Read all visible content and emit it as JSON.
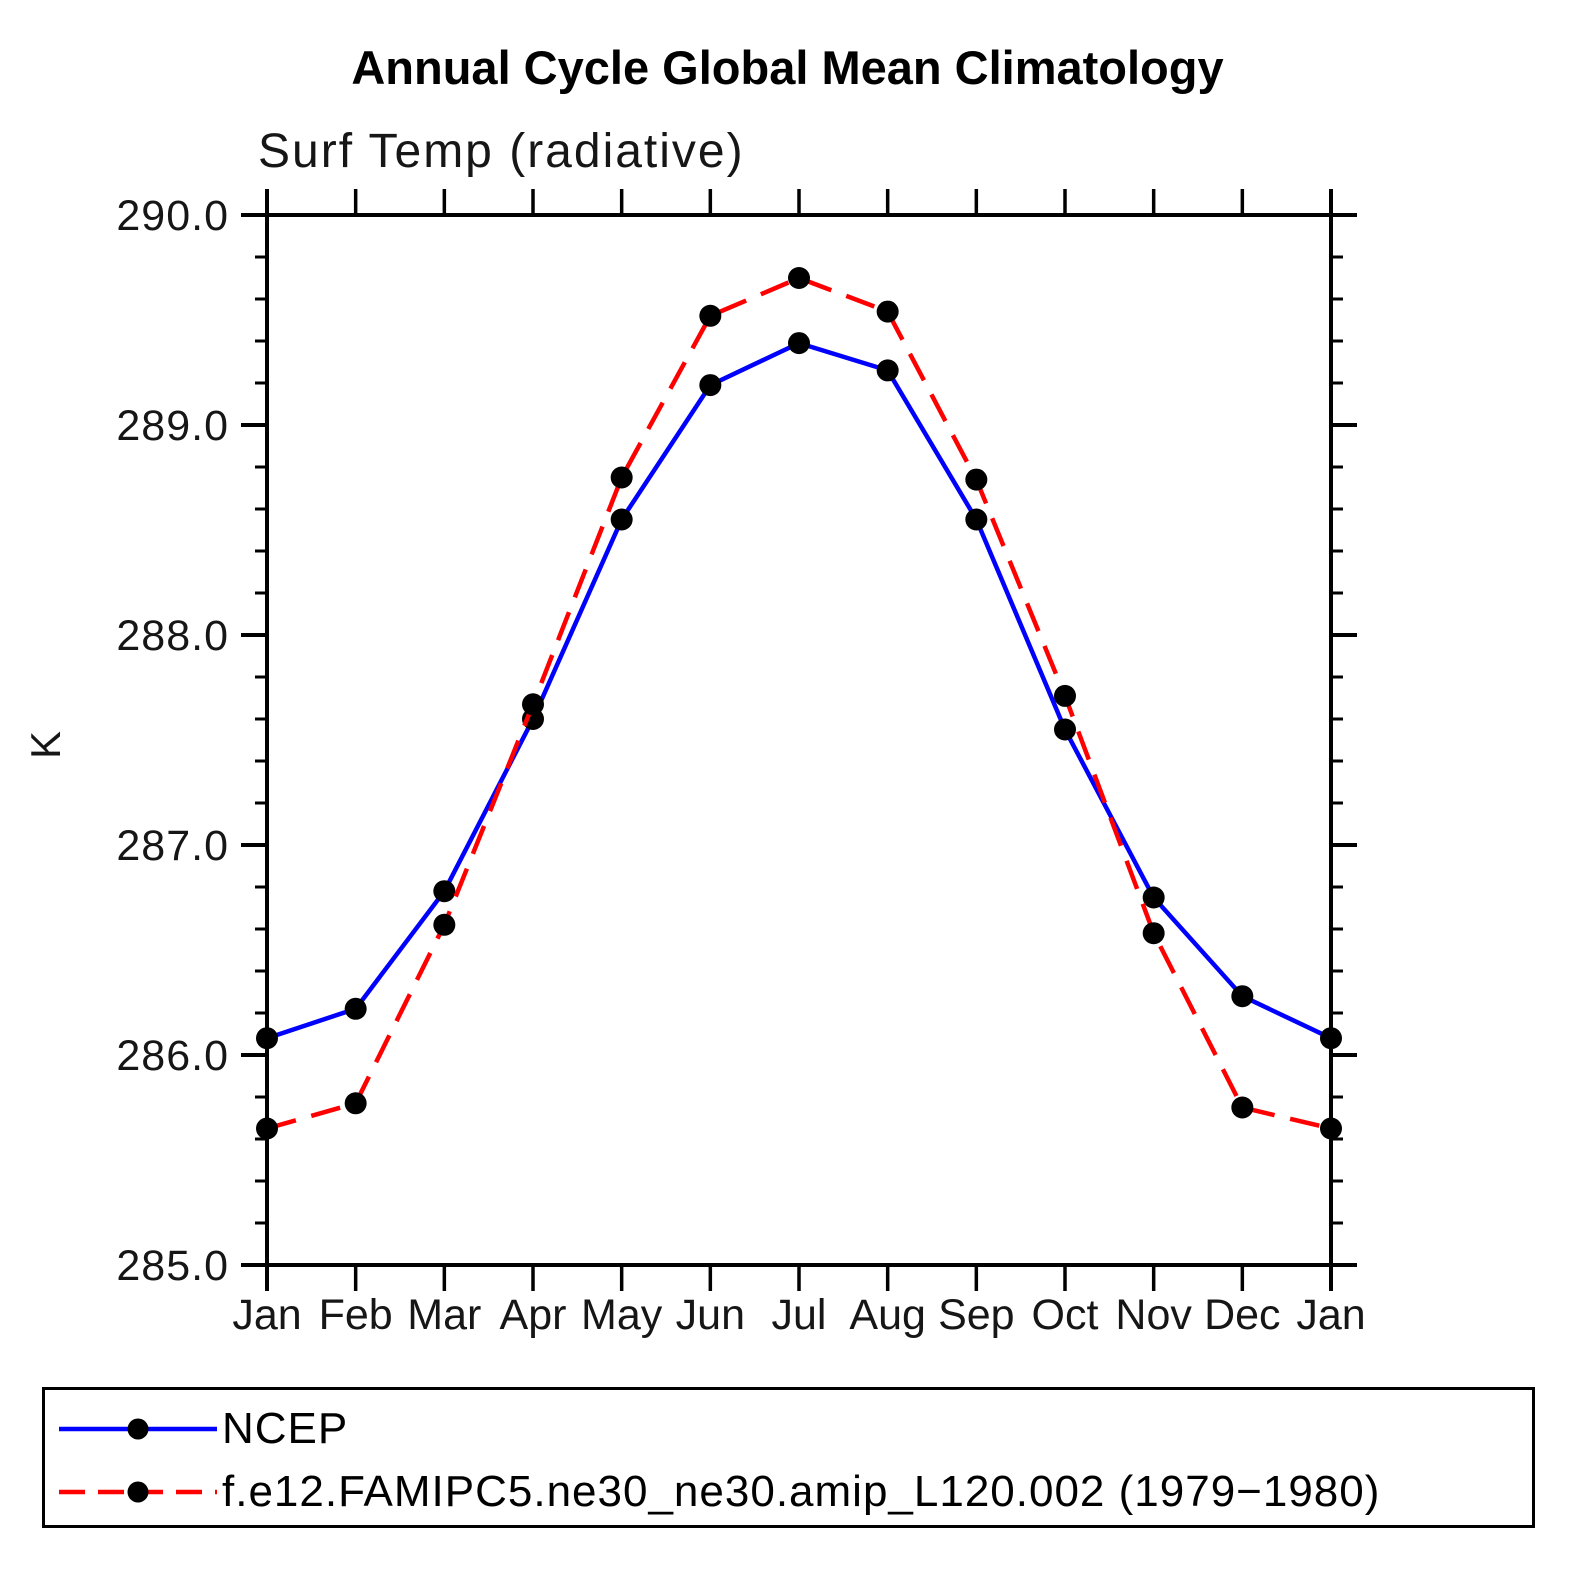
{
  "title": "Annual Cycle Global Mean Climatology",
  "subtitle": "Surf Temp (radiative)",
  "y_axis_label": "K",
  "chart_data": {
    "type": "line",
    "title": "Annual Cycle Global Mean Climatology",
    "subtitle": "Surf Temp (radiative)",
    "xlabel": "",
    "ylabel": "K",
    "categories": [
      "Jan",
      "Feb",
      "Mar",
      "Apr",
      "May",
      "Jun",
      "Jul",
      "Aug",
      "Sep",
      "Oct",
      "Nov",
      "Dec",
      "Jan"
    ],
    "ylim": [
      285.0,
      290.0
    ],
    "ytick_major_step": 1.0,
    "ytick_minor_step": 0.2,
    "ytick_major_labels": [
      "285.0",
      "286.0",
      "287.0",
      "288.0",
      "289.0",
      "290.0"
    ],
    "grid": false,
    "axis_box": true,
    "tick_direction": "out",
    "legend_position": "bottom-left-box",
    "series": [
      {
        "name": "NCEP",
        "line_color": "#0000ff",
        "line_style": "solid",
        "marker": "filled-circle",
        "marker_color": "#000000",
        "values": [
          286.08,
          286.22,
          286.78,
          287.6,
          288.55,
          289.19,
          289.39,
          289.26,
          288.55,
          287.55,
          286.75,
          286.28,
          286.08
        ]
      },
      {
        "name": "f.e12.FAMIPC5.ne30_ne30.amip_L120.002 (1979−1980)",
        "line_color": "#ff0000",
        "line_style": "dashed",
        "marker": "filled-circle",
        "marker_color": "#000000",
        "values": [
          285.65,
          285.77,
          286.62,
          287.67,
          288.75,
          289.52,
          289.7,
          289.54,
          288.74,
          287.71,
          286.58,
          285.75,
          285.65
        ]
      }
    ]
  },
  "legend": {
    "entries": [
      {
        "label": "NCEP",
        "line_color": "#0000ff",
        "line_style": "solid",
        "marker_color": "#000000"
      },
      {
        "label": "f.e12.FAMIPC5.ne30_ne30.amip_L120.002 (1979−1980)",
        "line_color": "#ff0000",
        "line_style": "dashed",
        "marker_color": "#000000"
      }
    ]
  },
  "colors": {
    "background": "#ffffff",
    "axis": "#000000",
    "ncep_line": "#0000ff",
    "model_line": "#ff0000",
    "marker": "#000000"
  }
}
